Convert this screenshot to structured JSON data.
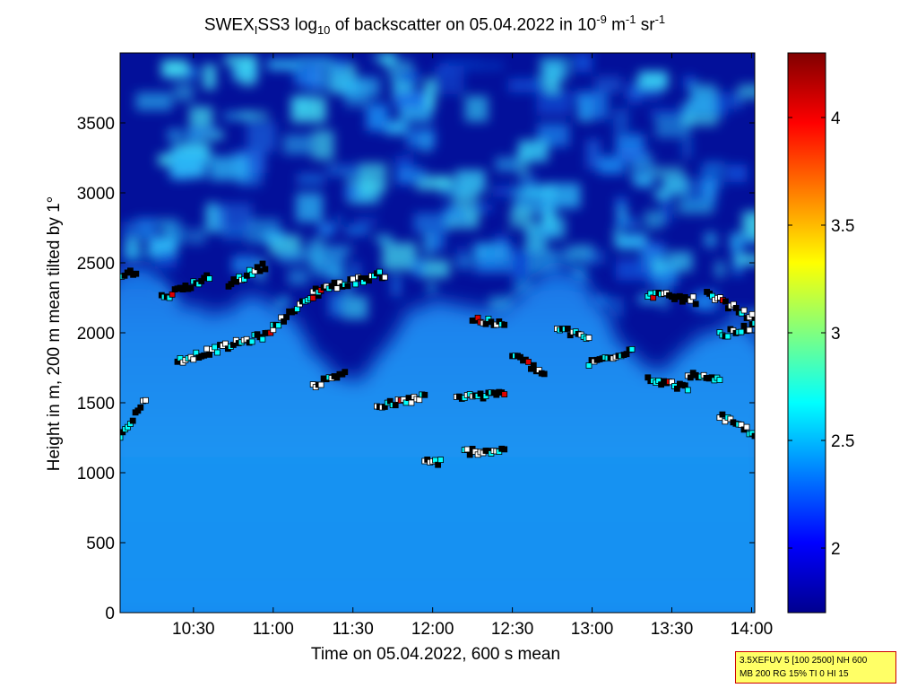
{
  "title": {
    "p1": "SWEX",
    "sub1": "I",
    "p2": "SS3 log",
    "sub2": "10",
    "p3": " of backscatter on 05.04.2022 in 10",
    "sup1": "-9",
    "p4": " m",
    "sup2": "-1",
    "p5": " sr",
    "sup3": "-1"
  },
  "chart_data": {
    "type": "heatmap",
    "xlabel": "Time on 05.04.2022, 600 s mean",
    "ylabel": "Height in m, 200 m mean tilted by 1°",
    "x_ticks": [
      "10:30",
      "11:00",
      "11:30",
      "12:00",
      "12:30",
      "13:00",
      "13:30",
      "14:00"
    ],
    "x_tick_hours": [
      10.5,
      11.0,
      11.5,
      12.0,
      12.5,
      13.0,
      13.5,
      14.0
    ],
    "xlim_hours": [
      10.04,
      14.02
    ],
    "y_ticks": [
      0,
      500,
      1000,
      1500,
      2000,
      2500,
      3000,
      3500
    ],
    "ylim": [
      0,
      4000
    ],
    "colorbar": {
      "ticks": [
        "2",
        "2.5",
        "3",
        "3.5",
        "4"
      ],
      "tick_values": [
        2,
        2.5,
        3,
        3.5,
        4
      ],
      "range": [
        1.7,
        4.3
      ],
      "colormap": "jet"
    },
    "surface": {
      "low_layer_value": 2.45,
      "boundary_layer_top_m": 2100,
      "free_troposphere_value": 1.8,
      "patches_value": 2.7
    },
    "markers": [
      {
        "name": "cloud base detections",
        "color": "#000000"
      },
      {
        "name": "layer 1",
        "color": "#ffffff"
      },
      {
        "name": "layer 2",
        "color": "#00ffff"
      },
      {
        "name": "high backscatter",
        "color": "#dd0000"
      }
    ]
  },
  "info_box": {
    "line1": "3.5XEFUV 5 [100 2500] NH 600",
    "line2": "MB 200 RG 15% TI 0 HI 15"
  }
}
